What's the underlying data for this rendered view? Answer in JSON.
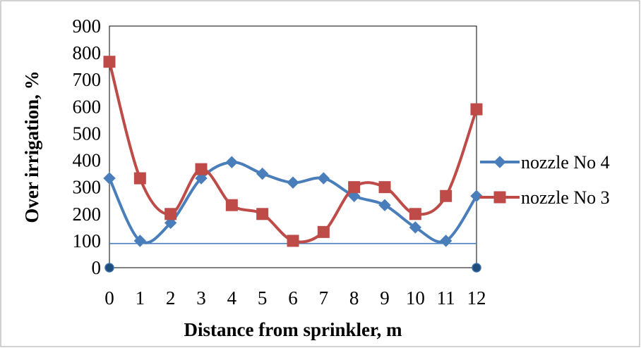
{
  "chart_data": {
    "type": "line",
    "title": "",
    "xlabel": "Distance from sprinkler, m",
    "ylabel": "Over irrigation, %",
    "x": [
      0,
      1,
      2,
      3,
      4,
      5,
      6,
      7,
      8,
      9,
      10,
      11,
      12
    ],
    "xlim": [
      0,
      12
    ],
    "ylim": [
      0,
      900
    ],
    "yticks": [
      0,
      100,
      200,
      300,
      400,
      500,
      600,
      700,
      800,
      900
    ],
    "grid": false,
    "legend_position": "right",
    "series": [
      {
        "name": "nozzle No 4",
        "color": "#4a7ebb",
        "marker": "diamond",
        "smooth": true,
        "values": [
          333,
          100,
          167,
          333,
          393,
          350,
          317,
          333,
          267,
          233,
          150,
          100,
          267
        ]
      },
      {
        "name": "nozzle No 3",
        "color": "#be4b48",
        "marker": "square",
        "smooth": true,
        "values": [
          767,
          333,
          200,
          367,
          233,
          200,
          100,
          133,
          300,
          300,
          200,
          267,
          590
        ]
      }
    ],
    "reference_line": {
      "y": 90,
      "color": "#4a7ebb"
    },
    "endpoint_markers": {
      "y": 0,
      "x": [
        0,
        12
      ],
      "color": "#1f4e79"
    }
  }
}
